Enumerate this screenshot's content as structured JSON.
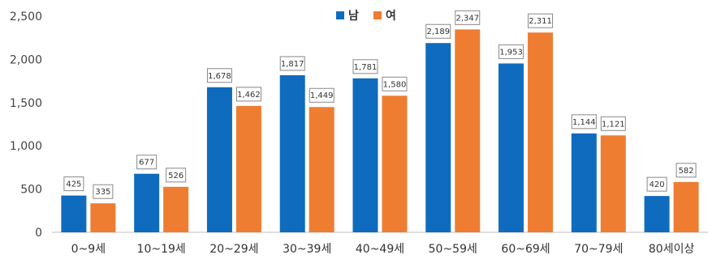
{
  "chart_data": {
    "type": "bar",
    "categories": [
      "0~9세",
      "10~19세",
      "20~29세",
      "30~39세",
      "40~49세",
      "50~59세",
      "60~69세",
      "70~79세",
      "80세이상"
    ],
    "series": [
      {
        "name": "남",
        "color": "#0F6BBE",
        "values": [
          425,
          677,
          1678,
          1817,
          1781,
          2189,
          1953,
          1144,
          420
        ]
      },
      {
        "name": "여",
        "color": "#EE7D31",
        "values": [
          335,
          526,
          1462,
          1449,
          1580,
          2347,
          2311,
          1121,
          582
        ]
      }
    ],
    "data_labels": [
      [
        "425",
        "677",
        "1,678",
        "1,817",
        "1,781",
        "2,189",
        "1,953",
        "1,144",
        "420"
      ],
      [
        "335",
        "526",
        "1,462",
        "1,449",
        "1,580",
        "2,347",
        "2,311",
        "1,121",
        "582"
      ]
    ],
    "ylim": [
      0,
      2500
    ],
    "yticks": [
      0,
      500,
      1000,
      1500,
      2000,
      2500
    ],
    "ytick_labels": [
      "0",
      "500",
      "1,000",
      "1,500",
      "2,000",
      "2,500"
    ],
    "legend": "top-center",
    "grid": false
  }
}
